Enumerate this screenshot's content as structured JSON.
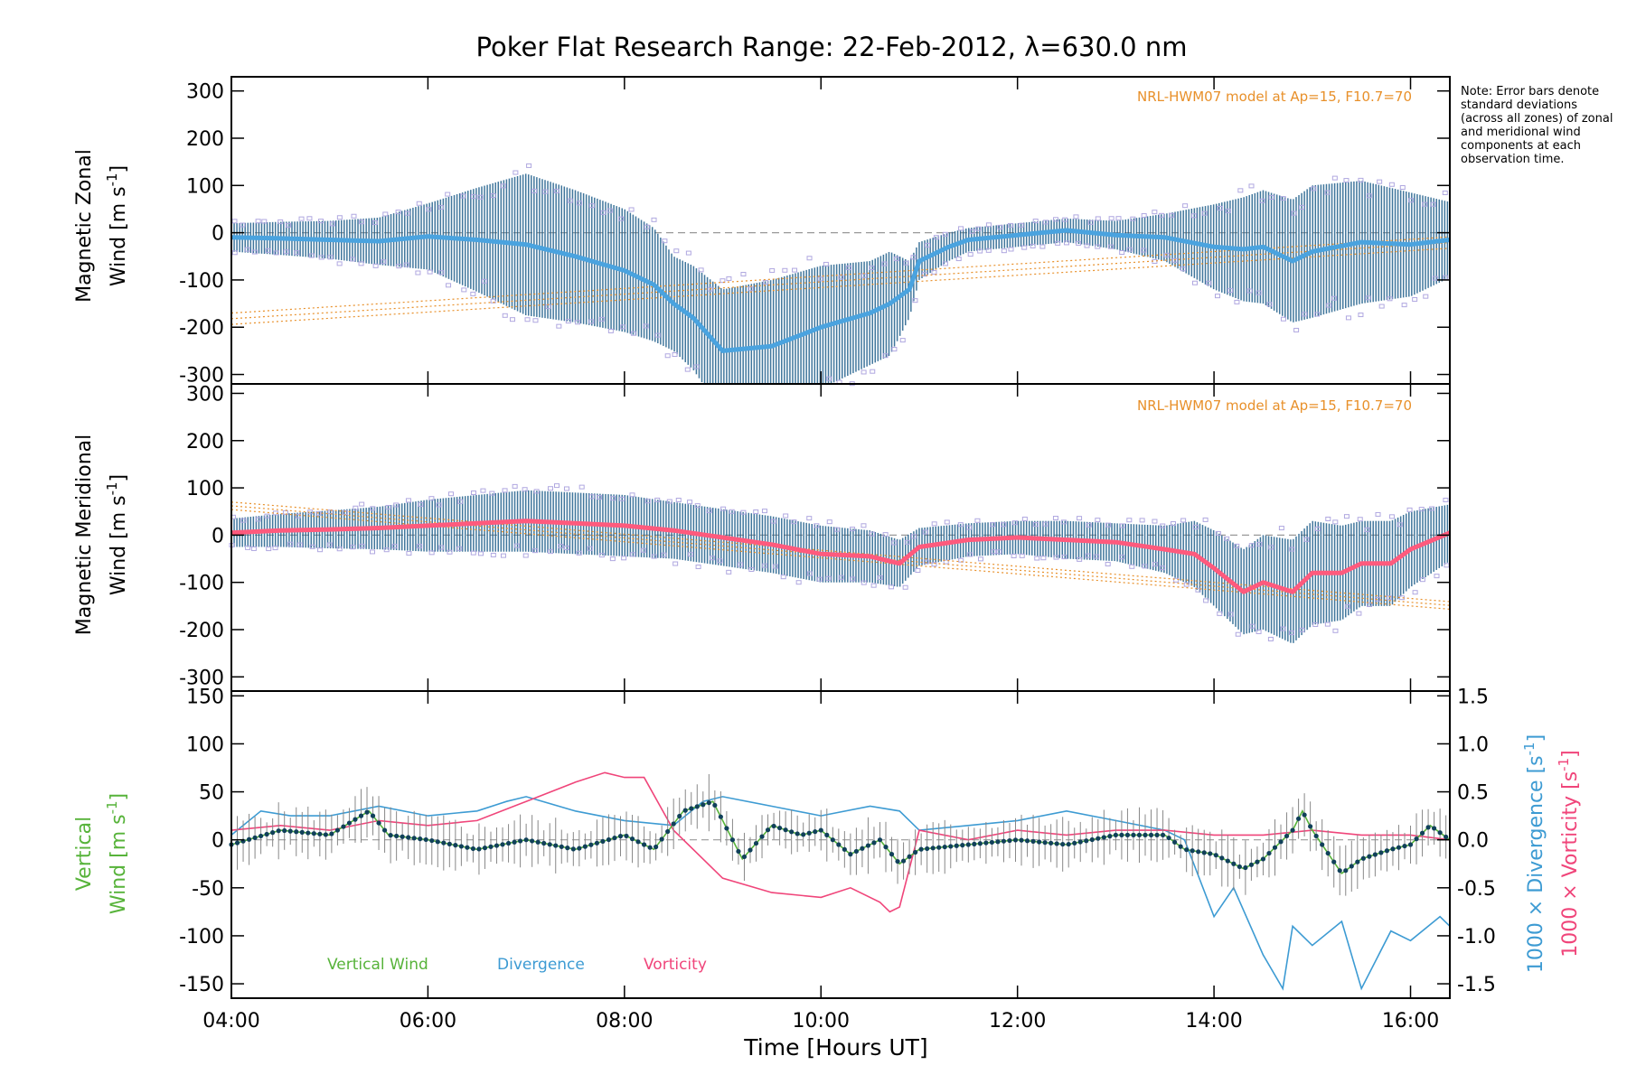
{
  "figure": {
    "title": "Poker Flat Research Range: 22-Feb-2012, λ=630.0 nm",
    "note": "Note: Error bars denote standard deviations (across all zones) of zonal and meridional wind components at each observation time.",
    "x_label": "Time [Hours UT]"
  },
  "chart_data": [
    {
      "type": "line",
      "panel": "zonal",
      "ylabel_line1": "Magnetic Zonal",
      "ylabel_line2": "Wind [m s",
      "ylabel_sup": "-1",
      "ylabel_close": "]",
      "model_label": "NRL-HWM07 model at Ap=15, F10.7=70",
      "xlim": [
        4.0,
        16.4
      ],
      "ylim": [
        -320,
        330
      ],
      "x_ticks": [
        "04:00",
        "06:00",
        "08:00",
        "10:00",
        "12:00",
        "14:00",
        "16:00"
      ],
      "y_ticks": [
        300,
        200,
        100,
        0,
        -100,
        -200,
        -300
      ],
      "zero_line": true,
      "colors": {
        "mean": "#4aa3df",
        "errorbar": "#1f5f8b",
        "zone_points": "#b0a8e0",
        "model": "#e8902a"
      },
      "series": [
        {
          "name": "mean",
          "x": [
            4.0,
            4.5,
            5.0,
            5.5,
            6.0,
            6.5,
            7.0,
            7.5,
            8.0,
            8.3,
            8.5,
            8.7,
            9.0,
            9.5,
            10.0,
            10.5,
            10.7,
            10.9,
            11.0,
            11.3,
            11.5,
            12.0,
            12.5,
            13.0,
            13.5,
            14.0,
            14.3,
            14.5,
            14.8,
            15.0,
            15.5,
            16.0,
            16.4
          ],
          "y": [
            -10,
            -12,
            -15,
            -18,
            -8,
            -15,
            -25,
            -50,
            -80,
            -110,
            -150,
            -180,
            -250,
            -240,
            -200,
            -170,
            -150,
            -120,
            -60,
            -30,
            -15,
            -5,
            5,
            -5,
            -10,
            -30,
            -35,
            -30,
            -60,
            -40,
            -20,
            -25,
            -15
          ]
        },
        {
          "name": "spread",
          "x": [
            4.0,
            4.5,
            5.0,
            5.5,
            6.0,
            6.5,
            7.0,
            7.5,
            8.0,
            8.3,
            8.5,
            8.7,
            9.0,
            9.5,
            10.0,
            10.5,
            10.7,
            10.9,
            11.0,
            11.3,
            11.5,
            12.0,
            12.5,
            13.0,
            13.5,
            14.0,
            14.3,
            14.5,
            14.8,
            15.0,
            15.5,
            16.0,
            16.4
          ],
          "y": [
            30,
            35,
            40,
            50,
            70,
            110,
            150,
            140,
            130,
            120,
            100,
            110,
            130,
            140,
            130,
            110,
            110,
            60,
            40,
            30,
            25,
            25,
            25,
            30,
            50,
            90,
            110,
            120,
            130,
            140,
            130,
            110,
            80
          ]
        }
      ]
    },
    {
      "type": "line",
      "panel": "meridional",
      "ylabel_line1": "Magnetic Meridional",
      "ylabel_line2": "Wind [m s",
      "ylabel_sup": "-1",
      "ylabel_close": "]",
      "model_label": "NRL-HWM07 model at Ap=15, F10.7=70",
      "xlim": [
        4.0,
        16.4
      ],
      "ylim": [
        -330,
        320
      ],
      "x_ticks": [
        "04:00",
        "06:00",
        "08:00",
        "10:00",
        "12:00",
        "14:00",
        "16:00"
      ],
      "y_ticks": [
        300,
        200,
        100,
        0,
        -100,
        -200,
        -300
      ],
      "zero_line": true,
      "colors": {
        "mean": "#ff5a7d",
        "errorbar": "#1f5f8b",
        "zone_points": "#b0a8e0",
        "model": "#e8902a"
      },
      "series": [
        {
          "name": "mean",
          "x": [
            4.0,
            4.5,
            5.0,
            5.5,
            6.0,
            6.5,
            7.0,
            7.5,
            8.0,
            8.5,
            9.0,
            9.5,
            10.0,
            10.5,
            10.8,
            11.0,
            11.5,
            12.0,
            12.5,
            13.0,
            13.5,
            13.8,
            14.0,
            14.3,
            14.5,
            14.8,
            15.0,
            15.3,
            15.5,
            15.8,
            16.0,
            16.4
          ],
          "y": [
            5,
            10,
            12,
            15,
            20,
            25,
            30,
            25,
            20,
            10,
            -5,
            -20,
            -40,
            -45,
            -60,
            -25,
            -10,
            -5,
            -10,
            -15,
            -30,
            -40,
            -70,
            -120,
            -100,
            -120,
            -80,
            -80,
            -60,
            -60,
            -30,
            5
          ]
        },
        {
          "name": "spread",
          "x": [
            4.0,
            4.5,
            5.0,
            5.5,
            6.0,
            6.5,
            7.0,
            7.5,
            8.0,
            8.5,
            9.0,
            9.5,
            10.0,
            10.5,
            10.8,
            11.0,
            11.5,
            12.0,
            12.5,
            13.0,
            13.5,
            13.8,
            14.0,
            14.3,
            14.5,
            14.8,
            15.0,
            15.3,
            15.5,
            15.8,
            16.0,
            16.4
          ],
          "y": [
            30,
            35,
            40,
            45,
            55,
            60,
            65,
            65,
            65,
            60,
            60,
            60,
            60,
            55,
            50,
            40,
            35,
            35,
            40,
            40,
            50,
            70,
            80,
            90,
            100,
            110,
            110,
            100,
            90,
            90,
            80,
            60
          ]
        }
      ]
    },
    {
      "type": "line",
      "panel": "vertical",
      "ylabel_line1": "Vertical",
      "ylabel_line2": "Wind [m s",
      "ylabel_sup": "-1",
      "ylabel_close": "]",
      "right_label_div": "1000 × Divergence [s",
      "right_label_vort": "1000 × Vorticity [s",
      "right_label_sup": "-1",
      "right_label_close": "]",
      "xlim": [
        4.0,
        16.4
      ],
      "ylim": [
        -165,
        155
      ],
      "y2lim": [
        -1.65,
        1.55
      ],
      "x_ticks": [
        "04:00",
        "06:00",
        "08:00",
        "10:00",
        "12:00",
        "14:00",
        "16:00"
      ],
      "y_ticks": [
        150,
        100,
        50,
        0,
        -50,
        -100,
        -150
      ],
      "y2_ticks": [
        "1.5",
        "1.0",
        "0.5",
        "0.0",
        "-0.5",
        "-1.0",
        "-1.5"
      ],
      "zero_line": true,
      "legend": [
        {
          "label": "Vertical Wind",
          "color": "#57b33a"
        },
        {
          "label": "Divergence",
          "color": "#3d9bd3"
        },
        {
          "label": "Vorticity",
          "color": "#f0457a"
        }
      ],
      "series": [
        {
          "name": "Vertical Wind",
          "x": [
            4.0,
            4.5,
            5.0,
            5.4,
            5.6,
            6.0,
            6.5,
            7.0,
            7.5,
            8.0,
            8.3,
            8.6,
            8.9,
            9.2,
            9.5,
            9.8,
            10.0,
            10.3,
            10.6,
            10.8,
            11.0,
            11.5,
            12.0,
            12.5,
            13.0,
            13.5,
            13.7,
            14.0,
            14.3,
            14.5,
            14.8,
            14.9,
            15.0,
            15.3,
            15.5,
            15.8,
            16.0,
            16.2,
            16.4
          ],
          "y": [
            -5,
            10,
            5,
            30,
            5,
            0,
            -10,
            0,
            -10,
            5,
            -10,
            30,
            40,
            -20,
            15,
            5,
            10,
            -15,
            0,
            -25,
            -10,
            -5,
            0,
            -5,
            5,
            5,
            -10,
            -15,
            -30,
            -20,
            10,
            30,
            10,
            -35,
            -20,
            -10,
            -5,
            15,
            0
          ]
        },
        {
          "name": "Divergence",
          "x": [
            4.0,
            4.3,
            4.6,
            5.0,
            5.5,
            6.0,
            6.5,
            6.8,
            7.0,
            7.5,
            8.0,
            8.5,
            8.8,
            9.0,
            9.5,
            10.0,
            10.5,
            10.8,
            11.0,
            11.5,
            12.0,
            12.5,
            13.0,
            13.5,
            13.7,
            14.0,
            14.2,
            14.5,
            14.7,
            14.8,
            15.0,
            15.3,
            15.5,
            15.8,
            16.0,
            16.3,
            16.4
          ],
          "y": [
            0.05,
            0.3,
            0.25,
            0.25,
            0.35,
            0.25,
            0.3,
            0.4,
            0.45,
            0.3,
            0.2,
            0.15,
            0.4,
            0.45,
            0.35,
            0.25,
            0.35,
            0.3,
            0.1,
            0.15,
            0.2,
            0.3,
            0.2,
            0.1,
            0.0,
            -0.8,
            -0.5,
            -1.2,
            -1.55,
            -0.9,
            -1.1,
            -0.85,
            -1.55,
            -0.95,
            -1.05,
            -0.8,
            -0.9
          ]
        },
        {
          "name": "Vorticity",
          "x": [
            4.0,
            4.5,
            5.0,
            5.5,
            6.0,
            6.5,
            7.0,
            7.5,
            7.8,
            8.0,
            8.2,
            8.5,
            9.0,
            9.5,
            10.0,
            10.3,
            10.6,
            10.7,
            10.8,
            11.0,
            11.5,
            12.0,
            12.5,
            13.0,
            13.5,
            14.0,
            14.5,
            15.0,
            15.5,
            16.0,
            16.4
          ],
          "y": [
            0.1,
            0.15,
            0.1,
            0.2,
            0.15,
            0.2,
            0.4,
            0.6,
            0.7,
            0.65,
            0.65,
            0.1,
            -0.4,
            -0.55,
            -0.6,
            -0.5,
            -0.65,
            -0.75,
            -0.7,
            0.1,
            0.0,
            0.1,
            0.05,
            0.1,
            0.1,
            0.05,
            0.05,
            0.1,
            0.05,
            0.05,
            0.0
          ]
        }
      ]
    }
  ]
}
